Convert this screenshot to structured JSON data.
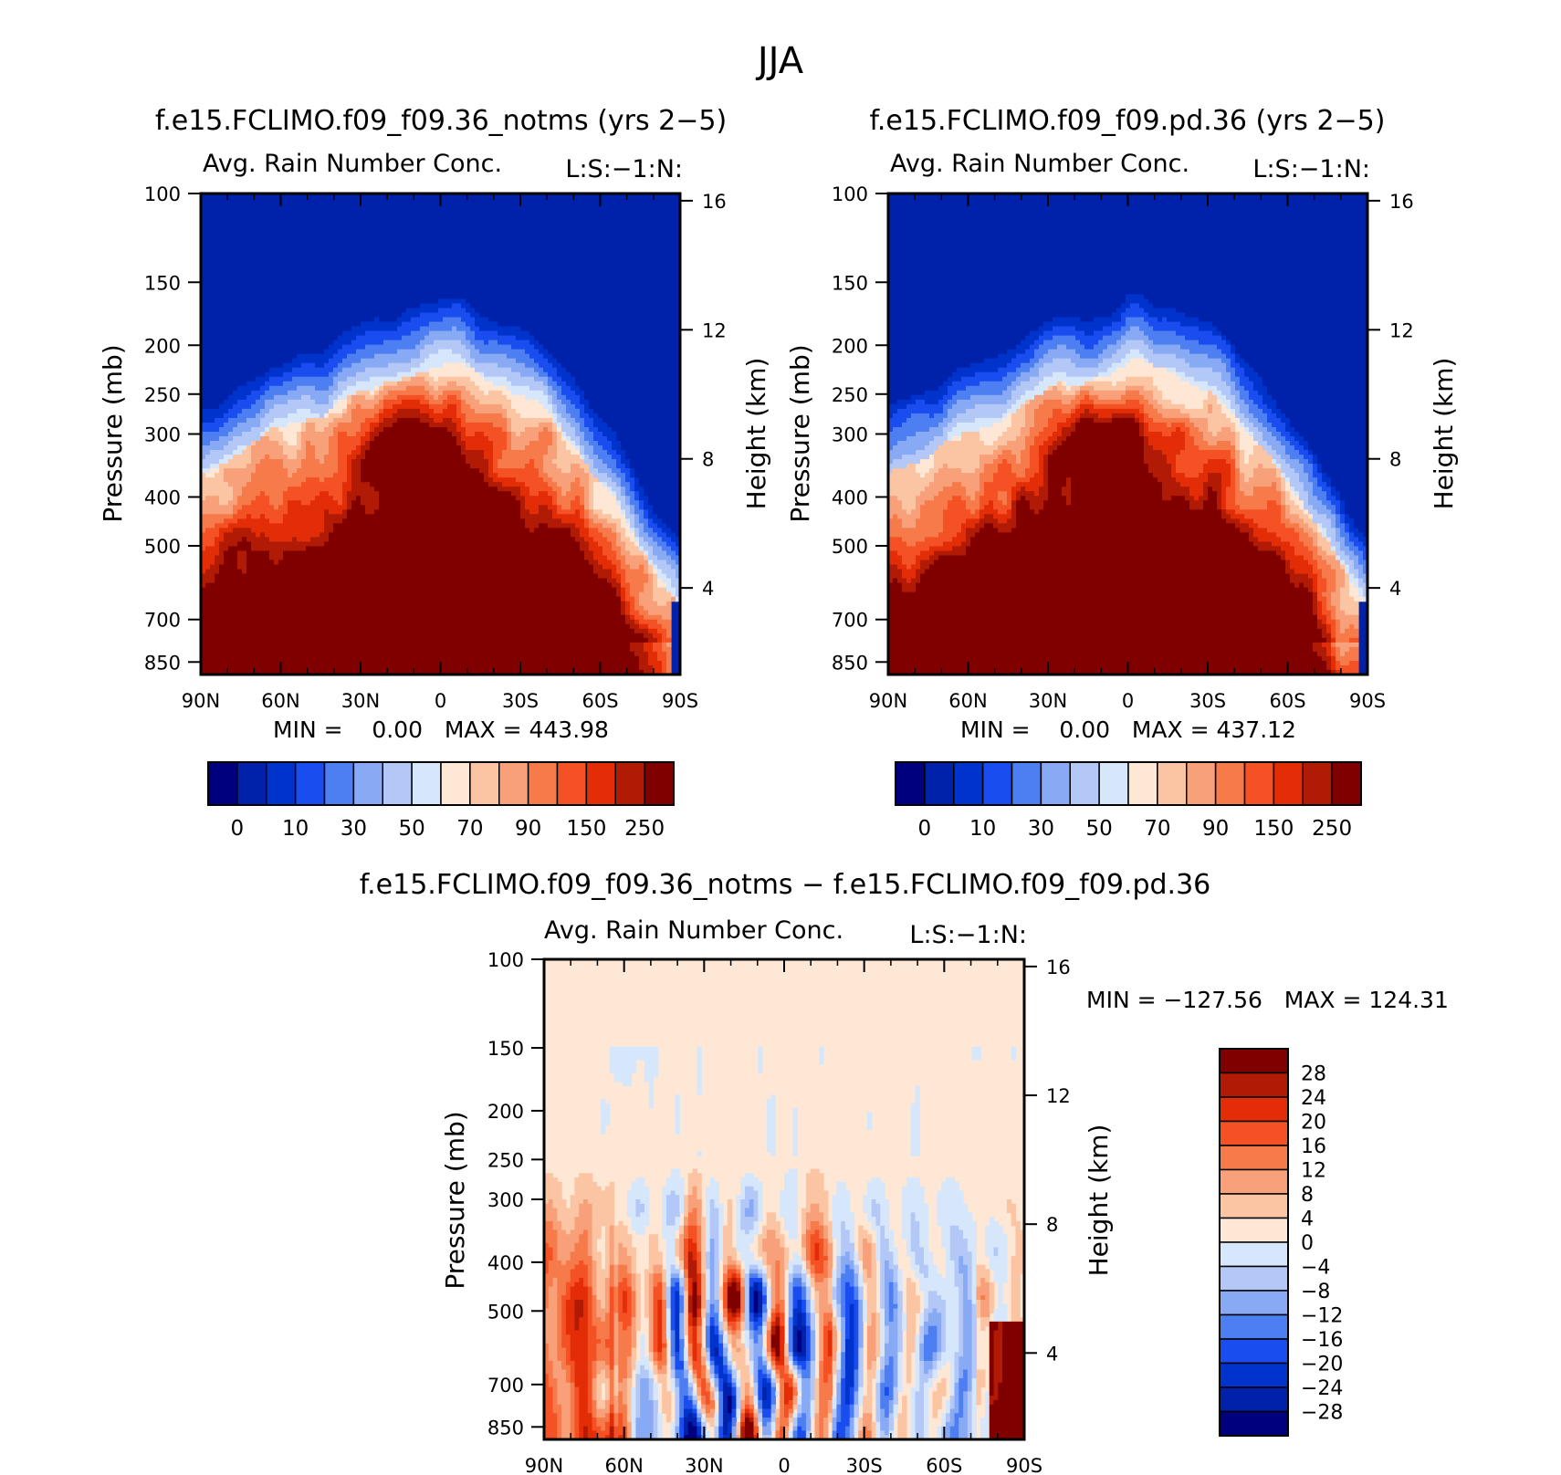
{
  "main_title": "JJA",
  "colors": {
    "abs_levels": [
      "#00007f",
      "#0022aa",
      "#0033cc",
      "#1a4df0",
      "#4d7ff2",
      "#88aaf5",
      "#b3c8f7",
      "#d7e7fb",
      "#fee7d5",
      "#fbc4a3",
      "#f8a07a",
      "#f67a4a",
      "#f45124",
      "#e32d07",
      "#b11a04",
      "#800000"
    ],
    "diff_levels": [
      "#00007f",
      "#0022aa",
      "#0033cc",
      "#1a4df0",
      "#4d7ff2",
      "#88aaf5",
      "#b3c8f7",
      "#d7e7fb",
      "#fee7d5",
      "#fbc4a3",
      "#f8a07a",
      "#f67a4a",
      "#f45124",
      "#e32d07",
      "#b11a04",
      "#800000"
    ]
  },
  "chart_data": [
    {
      "type": "heatmap",
      "title": "f.e15.FCLIMO.f09_f09.36_notms (yrs 2−5)",
      "subtitle": "Avg. Rain Number Conc.",
      "right_label": "L:S:−1:N:",
      "ylabel": "Pressure (mb)",
      "y2label": "Height (km)",
      "xticks": [
        "90N",
        "60N",
        "30N",
        "0",
        "30S",
        "60S",
        "90S"
      ],
      "yticks": [
        "100",
        "150",
        "200",
        "250",
        "300",
        "400",
        "500",
        "700",
        "850"
      ],
      "y2ticks": [
        "16",
        "12",
        "8",
        "4"
      ],
      "stats": "MIN =    0.00   MAX = 443.98",
      "min": 0.0,
      "max": 443.98,
      "colorbar_labels": [
        "0",
        "10",
        "30",
        "50",
        "70",
        "90",
        "150",
        "250"
      ],
      "boundary_pressure_mb": [
        360,
        330,
        300,
        290,
        260,
        245,
        230,
        220,
        220,
        240,
        270,
        320,
        400,
        520,
        650
      ],
      "core_max_region": "30N-0, 300-500 mb and 15S-55S, 500-850 mb"
    },
    {
      "type": "heatmap",
      "title": "f.e15.FCLIMO.f09_f09.pd.36 (yrs 2−5)",
      "subtitle": "Avg. Rain Number Conc.",
      "right_label": "L:S:−1:N:",
      "ylabel": "Pressure (mb)",
      "y2label": "Height (km)",
      "xticks": [
        "90N",
        "60N",
        "30N",
        "0",
        "30S",
        "60S",
        "90S"
      ],
      "yticks": [
        "100",
        "150",
        "200",
        "250",
        "300",
        "400",
        "500",
        "700",
        "850"
      ],
      "y2ticks": [
        "16",
        "12",
        "8",
        "4"
      ],
      "stats": "MIN =    0.00   MAX = 437.12",
      "min": 0.0,
      "max": 437.12,
      "colorbar_labels": [
        "0",
        "10",
        "30",
        "50",
        "70",
        "90",
        "150",
        "250"
      ],
      "boundary_pressure_mb": [
        370,
        335,
        305,
        290,
        260,
        240,
        228,
        220,
        220,
        240,
        270,
        320,
        390,
        500,
        640
      ],
      "core_max_region": "30N-0, 300-500 mb and 15S-55S, 500-850 mb"
    },
    {
      "type": "heatmap",
      "title": "f.e15.FCLIMO.f09_f09.36_notms − f.e15.FCLIMO.f09_f09.pd.36",
      "subtitle": "Avg. Rain Number Conc.",
      "right_label": "L:S:−1:N:",
      "ylabel": "Pressure (mb)",
      "y2label": "Height (km)",
      "xticks": [
        "90N",
        "60N",
        "30N",
        "0",
        "30S",
        "60S",
        "90S"
      ],
      "yticks": [
        "100",
        "150",
        "200",
        "250",
        "300",
        "400",
        "500",
        "700",
        "850"
      ],
      "y2ticks": [
        "16",
        "12",
        "8",
        "4"
      ],
      "stats": "MIN = −127.56   MAX = 124.31",
      "min": -127.56,
      "max": 124.31,
      "colorbar_labels": [
        "28",
        "24",
        "20",
        "16",
        "12",
        "8",
        "4",
        "0",
        "−4",
        "−8",
        "−12",
        "−16",
        "−20",
        "−24",
        "−28"
      ]
    }
  ]
}
